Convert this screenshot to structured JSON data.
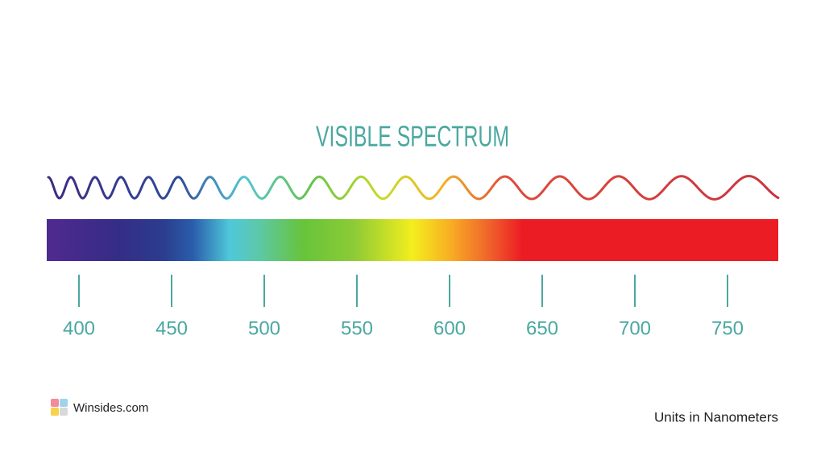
{
  "title": "VISIBLE SPECTRUM",
  "scale": {
    "ticks": [
      400,
      450,
      500,
      550,
      600,
      650,
      700,
      750
    ]
  },
  "footer": {
    "brand": "Winsides.com",
    "units": "Units in Nanometers"
  }
}
